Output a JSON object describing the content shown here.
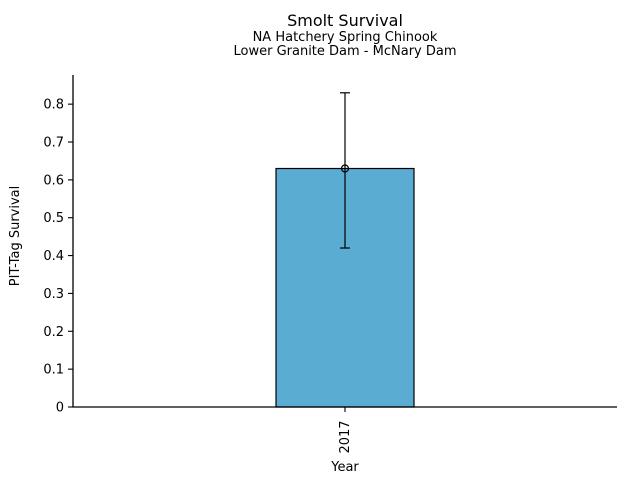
{
  "chart_data": {
    "type": "bar",
    "title": "Smolt Survival",
    "subtitle_lines": [
      "NA Hatchery Spring Chinook",
      "Lower Granite Dam - McNary Dam"
    ],
    "xlabel": "Year",
    "ylabel": "PIT-Tag Survival",
    "categories": [
      "2017"
    ],
    "values": [
      0.63
    ],
    "error_low": [
      0.42
    ],
    "error_high": [
      0.83
    ],
    "ylim": [
      0,
      0.877
    ],
    "yticks": [
      0,
      0.1,
      0.2,
      0.3,
      0.4,
      0.5,
      0.6,
      0.7,
      0.8
    ],
    "ytick_labels": [
      "0",
      "0.1",
      "0.2",
      "0.3",
      "0.4",
      "0.5",
      "0.6",
      "0.7",
      "0.8"
    ],
    "grid": false,
    "legend_position": "none",
    "marker": "open-circle",
    "colors": {
      "bar_fill": "#5AACD3",
      "bar_edge": "#000000",
      "error_bar": "#000000",
      "axis": "#000000",
      "text": "#000000",
      "background": "#FFFFFF"
    }
  }
}
